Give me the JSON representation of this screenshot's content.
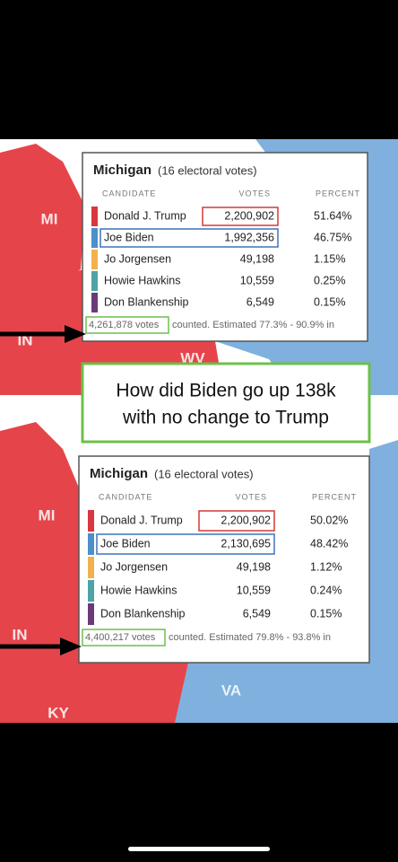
{
  "caption": "How did Biden go up 138k with no change to Trump",
  "map_labels": [
    "MI",
    "IN",
    "WV",
    "MI",
    "IN",
    "VA",
    "KY"
  ],
  "panels": [
    {
      "state": "Michigan",
      "subtitle": "(16 electoral votes)",
      "headers": [
        "CANDIDATE",
        "VOTES",
        "PERCENT"
      ],
      "rows": [
        {
          "candidate": "Donald J. Trump",
          "votes": "2,200,902",
          "percent": "51.64%",
          "color": "#d8373f"
        },
        {
          "candidate": "Joe Biden",
          "votes": "1,992,356",
          "percent": "46.75%",
          "color": "#4b8fcb"
        },
        {
          "candidate": "Jo Jorgensen",
          "votes": "49,198",
          "percent": "1.15%",
          "color": "#f1b24e"
        },
        {
          "candidate": "Howie Hawkins",
          "votes": "10,559",
          "percent": "0.25%",
          "color": "#4fa3a5"
        },
        {
          "candidate": "Don Blankenship",
          "votes": "6,549",
          "percent": "0.15%",
          "color": "#6b3a7a"
        }
      ],
      "total_votes": "4,261,878 votes",
      "footer": "counted. Estimated 77.3% - 90.9% in"
    },
    {
      "state": "Michigan",
      "subtitle": "(16 electoral votes)",
      "headers": [
        "CANDIDATE",
        "VOTES",
        "PERCENT"
      ],
      "rows": [
        {
          "candidate": "Donald J. Trump",
          "votes": "2,200,902",
          "percent": "50.02%",
          "color": "#d8373f"
        },
        {
          "candidate": "Joe Biden",
          "votes": "2,130,695",
          "percent": "48.42%",
          "color": "#4b8fcb"
        },
        {
          "candidate": "Jo Jorgensen",
          "votes": "49,198",
          "percent": "1.12%",
          "color": "#f1b24e"
        },
        {
          "candidate": "Howie Hawkins",
          "votes": "10,559",
          "percent": "0.24%",
          "color": "#4fa3a5"
        },
        {
          "candidate": "Don Blankenship",
          "votes": "6,549",
          "percent": "0.15%",
          "color": "#6b3a7a"
        }
      ],
      "total_votes": "4,400,217 votes",
      "footer": "counted. Estimated 79.8% - 93.8% in"
    }
  ]
}
